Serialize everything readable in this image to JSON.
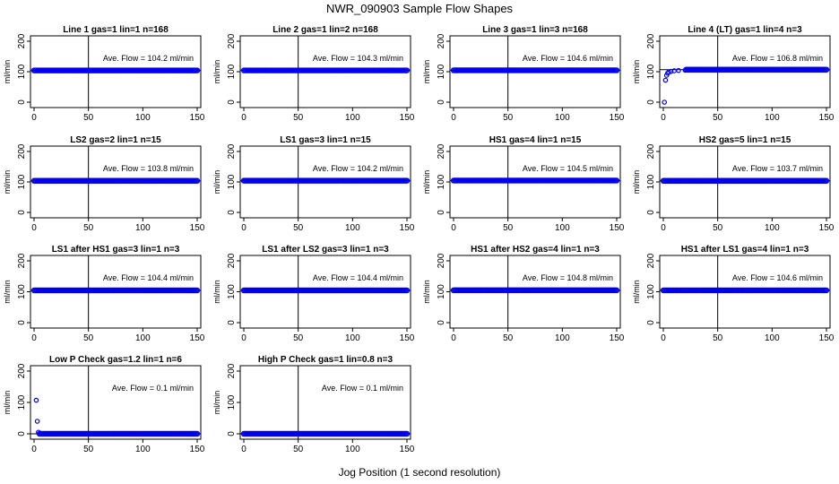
{
  "chart_data": {
    "type": "scatter",
    "title": "NWR_090903  Sample Flow Shapes",
    "xlabel": "Jog Position (1 second resolution)",
    "ylabel": "ml/min",
    "xlim": [
      0,
      150
    ],
    "ylim": [
      0,
      200
    ],
    "x_ticks": [
      0,
      50,
      100,
      150
    ],
    "y_ticks": [
      0,
      100,
      200
    ],
    "reference_x": 50,
    "point_color": "#0000ee",
    "panels": [
      {
        "title": "Line 1 gas=1 lin=1 n=168",
        "annotation": "Ave. Flow =  104.2  ml/min",
        "flow": 104.2,
        "series": [
          {
            "name": "flow",
            "x_range": [
              0,
              150
            ],
            "y": 104.2
          }
        ]
      },
      {
        "title": "Line 2 gas=1 lin=2 n=168",
        "annotation": "Ave. Flow =  104.3  ml/min",
        "flow": 104.3,
        "series": [
          {
            "name": "flow",
            "x_range": [
              0,
              150
            ],
            "y": 104.3
          }
        ]
      },
      {
        "title": "Line 3 gas=1 lin=3 n=168",
        "annotation": "Ave. Flow =  104.6  ml/min",
        "flow": 104.6,
        "series": [
          {
            "name": "flow",
            "x_range": [
              0,
              150
            ],
            "y": 104.6
          }
        ]
      },
      {
        "title": "Line 4 (LT) gas=1 lin=4 n=3",
        "annotation": "Ave. Flow =  106.8  ml/min",
        "flow": 106.8,
        "series": [
          {
            "name": "flow",
            "x_range": [
              0,
              150
            ],
            "y": 106.8
          }
        ],
        "startup": [
          [
            1,
            0
          ],
          [
            2,
            72
          ],
          [
            3,
            88
          ],
          [
            4,
            95
          ],
          [
            5,
            99
          ],
          [
            7,
            101
          ],
          [
            10,
            103
          ],
          [
            14,
            104
          ],
          [
            20,
            105
          ]
        ]
      },
      {
        "title": "LS2 gas=2 lin=1 n=15",
        "annotation": "Ave. Flow =  103.8  ml/min",
        "flow": 103.8,
        "series": [
          {
            "name": "flow",
            "x_range": [
              0,
              150
            ],
            "y": 103.8
          }
        ]
      },
      {
        "title": "LS1 gas=3 lin=1 n=15",
        "annotation": "Ave. Flow =  104.2  ml/min",
        "flow": 104.2,
        "series": [
          {
            "name": "flow",
            "x_range": [
              0,
              150
            ],
            "y": 104.2
          }
        ]
      },
      {
        "title": "HS1 gas=4 lin=1 n=15",
        "annotation": "Ave. Flow =  104.5  ml/min",
        "flow": 104.5,
        "series": [
          {
            "name": "flow",
            "x_range": [
              0,
              150
            ],
            "y": 104.5
          }
        ]
      },
      {
        "title": "HS2 gas=5 lin=1 n=15",
        "annotation": "Ave. Flow =  103.7  ml/min",
        "flow": 103.7,
        "series": [
          {
            "name": "flow",
            "x_range": [
              0,
              150
            ],
            "y": 103.7
          }
        ]
      },
      {
        "title": "LS1 after HS1 gas=3 lin=1 n=3",
        "annotation": "Ave. Flow =  104.4  ml/min",
        "flow": 104.4,
        "series": [
          {
            "name": "flow",
            "x_range": [
              0,
              150
            ],
            "y": 104.4
          }
        ]
      },
      {
        "title": "LS1 after LS2 gas=3 lin=1 n=3",
        "annotation": "Ave. Flow =  104.4  ml/min",
        "flow": 104.4,
        "series": [
          {
            "name": "flow",
            "x_range": [
              0,
              150
            ],
            "y": 104.4
          }
        ]
      },
      {
        "title": "HS1 after HS2 gas=4 lin=1 n=3",
        "annotation": "Ave. Flow =  104.8  ml/min",
        "flow": 104.8,
        "series": [
          {
            "name": "flow",
            "x_range": [
              0,
              150
            ],
            "y": 104.8
          }
        ]
      },
      {
        "title": "HS1 after LS1 gas=4 lin=1 n=3",
        "annotation": "Ave. Flow =  104.6  ml/min",
        "flow": 104.6,
        "series": [
          {
            "name": "flow",
            "x_range": [
              0,
              150
            ],
            "y": 104.6
          }
        ]
      },
      {
        "title": "Low P Check gas=1.2 lin=1 n=6",
        "annotation": "Ave. Flow =  0.1  ml/min",
        "flow": 0.1,
        "series": [
          {
            "name": "flow",
            "x_range": [
              0,
              150
            ],
            "y": 0.1
          }
        ],
        "startup": [
          [
            2,
            107
          ],
          [
            3,
            40
          ],
          [
            4,
            5
          ]
        ]
      },
      {
        "title": "High P Check gas=1 lin=0.8 n=3",
        "annotation": "Ave. Flow =  0.1  ml/min",
        "flow": 0.1,
        "series": [
          {
            "name": "flow",
            "x_range": [
              0,
              150
            ],
            "y": 0.1
          }
        ]
      }
    ]
  }
}
